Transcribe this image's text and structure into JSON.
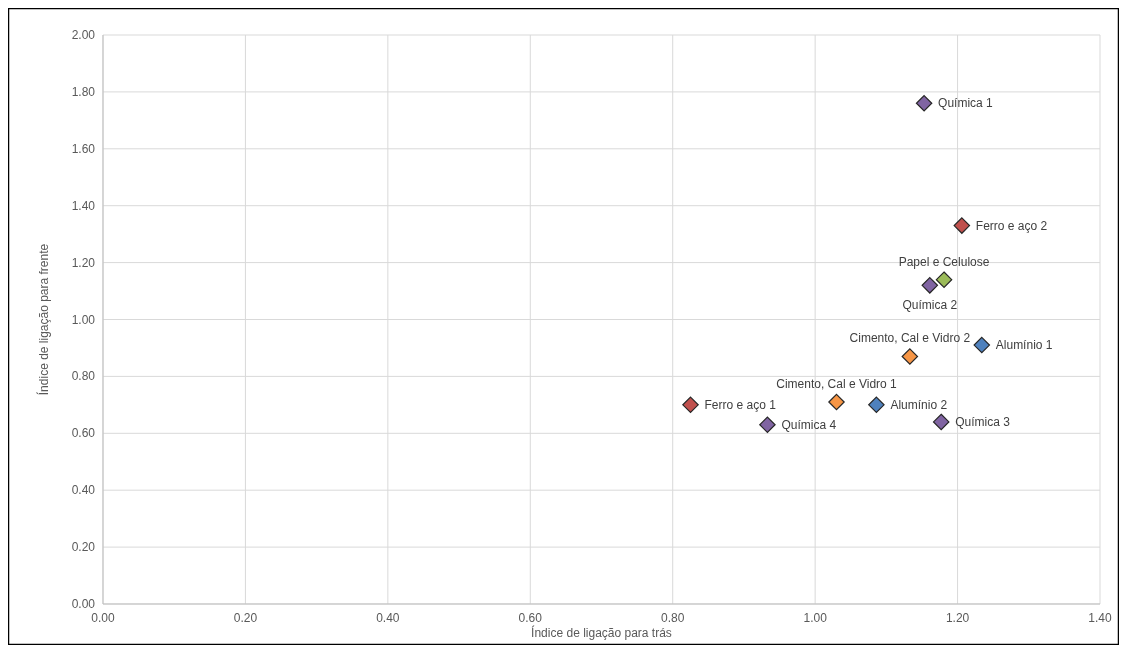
{
  "chart_data": {
    "type": "scatter",
    "xlabel": "Índice de ligação para trás",
    "ylabel": "Índice de ligação para frente",
    "x": [
      1.153,
      1.206,
      1.181,
      1.161,
      1.234,
      1.133,
      1.03,
      1.086,
      1.177,
      0.825,
      0.933
    ],
    "values": [
      1.76,
      1.33,
      1.14,
      1.12,
      0.91,
      0.87,
      0.71,
      0.7,
      0.64,
      0.7,
      0.63
    ],
    "colors": [
      "#8064a2",
      "#c0504d",
      "#9bbb59",
      "#8064a2",
      "#4f81bd",
      "#f79646",
      "#f79646",
      "#4f81bd",
      "#8064a2",
      "#c0504d",
      "#8064a2"
    ],
    "annotations": [
      {
        "text": "Química 1",
        "x": 1.153,
        "y": 1.76
      },
      {
        "text": "Ferro e aço 2",
        "x": 1.206,
        "y": 1.33
      },
      {
        "text": "Papel e Celulose",
        "x": 1.181,
        "y": 1.14
      },
      {
        "text": "Química 2",
        "x": 1.161,
        "y": 1.12
      },
      {
        "text": "Alumínio 1",
        "x": 1.234,
        "y": 0.91
      },
      {
        "text": "Cimento, Cal e Vidro 2",
        "x": 1.133,
        "y": 0.87
      },
      {
        "text": "Cimento, Cal e Vidro 1",
        "x": 1.03,
        "y": 0.71
      },
      {
        "text": "Alumínio 2",
        "x": 1.086,
        "y": 0.7
      },
      {
        "text": "Química 3",
        "x": 1.177,
        "y": 0.64
      },
      {
        "text": "Ferro e aço 1",
        "x": 0.825,
        "y": 0.7
      },
      {
        "text": "Química 4",
        "x": 0.933,
        "y": 0.63
      }
    ],
    "xlim": [
      0,
      1.4
    ],
    "xticks": [
      {
        "value": 0,
        "label": "0.00"
      },
      {
        "value": 0.2,
        "label": "0.20"
      },
      {
        "value": 0.4,
        "label": "0.40"
      },
      {
        "value": 0.6,
        "label": "0.60"
      },
      {
        "value": 0.8,
        "label": "0.80"
      },
      {
        "value": 1,
        "label": "1.00"
      },
      {
        "value": 1.2,
        "label": "1.20"
      },
      {
        "value": 1.4,
        "label": "1.40"
      }
    ],
    "ylim": [
      0,
      2
    ],
    "yticks": [
      {
        "value": 0,
        "label": "0.00"
      },
      {
        "value": 0.2,
        "label": "0.20"
      },
      {
        "value": 0.4,
        "label": "0.40"
      },
      {
        "value": 0.6,
        "label": "0.60"
      },
      {
        "value": 0.8,
        "label": "0.80"
      },
      {
        "value": 1,
        "label": "1.00"
      },
      {
        "value": 1.2,
        "label": "1.20"
      },
      {
        "value": 1.4,
        "label": "1.40"
      },
      {
        "value": 1.6,
        "label": "1.60"
      },
      {
        "value": 1.8,
        "label": "1.80"
      },
      {
        "value": 2,
        "label": "2.00"
      }
    ],
    "grid": true,
    "marker": "diamond"
  }
}
